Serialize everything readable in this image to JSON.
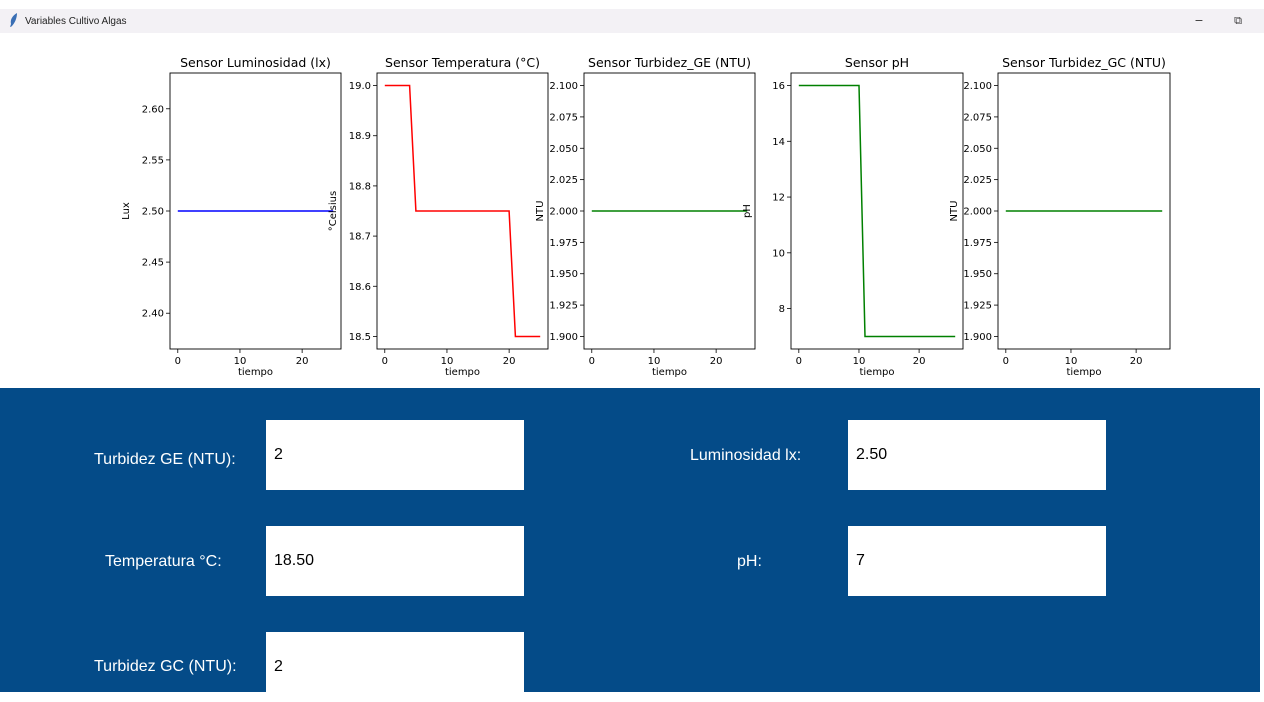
{
  "window": {
    "title": "Variables Cultivo Algas",
    "app_icon": "feather-icon",
    "minimize_glyph": "−",
    "restore_glyph": "⧉"
  },
  "chart_data": [
    {
      "type": "line",
      "title": "Sensor Luminosidad (lx)",
      "xlabel": "tiempo",
      "ylabel": "Lux",
      "x": [
        0,
        25
      ],
      "series": [
        {
          "values": [
            2.5,
            2.5
          ],
          "color": "#0000ff"
        }
      ],
      "xlim": [
        -1.25,
        26.25
      ],
      "ylim": [
        2.365,
        2.635
      ],
      "xticks": [
        0,
        10,
        20
      ],
      "xtick_labels": [
        "0",
        "10",
        "20"
      ],
      "yticks": [
        2.4,
        2.45,
        2.5,
        2.55,
        2.6
      ],
      "ytick_labels": [
        "2.40",
        "2.45",
        "2.50",
        "2.55",
        "2.60"
      ],
      "grid": false
    },
    {
      "type": "line",
      "title": "Sensor Temperatura (°C)",
      "xlabel": "tiempo",
      "ylabel": "°Celsius",
      "x": [
        0,
        4,
        5,
        20,
        21,
        25
      ],
      "series": [
        {
          "values": [
            19.0,
            19.0,
            18.75,
            18.75,
            18.5,
            18.5
          ],
          "color": "#ff0000"
        }
      ],
      "xlim": [
        -1.25,
        26.25
      ],
      "ylim": [
        18.475,
        19.025
      ],
      "xticks": [
        0,
        10,
        20
      ],
      "xtick_labels": [
        "0",
        "10",
        "20"
      ],
      "yticks": [
        18.5,
        18.6,
        18.7,
        18.8,
        18.9,
        19.0
      ],
      "ytick_labels": [
        "18.5",
        "18.6",
        "18.7",
        "18.8",
        "18.9",
        "19.0"
      ],
      "grid": false
    },
    {
      "type": "line",
      "title": "Sensor Turbidez_GE (NTU)",
      "xlabel": "tiempo",
      "ylabel": "NTU",
      "x": [
        0,
        25
      ],
      "series": [
        {
          "values": [
            2.0,
            2.0
          ],
          "color": "#008000"
        }
      ],
      "xlim": [
        -1.25,
        26.25
      ],
      "ylim": [
        1.89,
        2.11
      ],
      "xticks": [
        0,
        10,
        20
      ],
      "xtick_labels": [
        "0",
        "10",
        "20"
      ],
      "yticks": [
        1.9,
        1.925,
        1.95,
        1.975,
        2.0,
        2.025,
        2.05,
        2.075,
        2.1
      ],
      "ytick_labels": [
        "1.900",
        "1.925",
        "1.950",
        "1.975",
        "2.000",
        "2.025",
        "2.050",
        "2.075",
        "2.100"
      ],
      "grid": false
    },
    {
      "type": "line",
      "title": "Sensor pH",
      "xlabel": "tiempo",
      "ylabel": "pH",
      "x": [
        0,
        10,
        11,
        26
      ],
      "series": [
        {
          "values": [
            16,
            16,
            7,
            7
          ],
          "color": "#008000"
        }
      ],
      "xlim": [
        -1.3,
        27.3
      ],
      "ylim": [
        6.55,
        16.45
      ],
      "xticks": [
        0,
        10,
        20
      ],
      "xtick_labels": [
        "0",
        "10",
        "20"
      ],
      "yticks": [
        8,
        10,
        12,
        14,
        16
      ],
      "ytick_labels": [
        "8",
        "10",
        "12",
        "14",
        "16"
      ],
      "grid": false
    },
    {
      "type": "line",
      "title": "Sensor Turbidez_GC (NTU)",
      "xlabel": "tiempo",
      "ylabel": "NTU",
      "x": [
        0,
        24
      ],
      "series": [
        {
          "values": [
            2.0,
            2.0
          ],
          "color": "#008000"
        }
      ],
      "xlim": [
        -1.2,
        25.2
      ],
      "ylim": [
        1.89,
        2.11
      ],
      "xticks": [
        0,
        10,
        20
      ],
      "xtick_labels": [
        "0",
        "10",
        "20"
      ],
      "yticks": [
        1.9,
        1.925,
        1.95,
        1.975,
        2.0,
        2.025,
        2.05,
        2.075,
        2.1
      ],
      "ytick_labels": [
        "1.900",
        "1.925",
        "1.950",
        "1.975",
        "2.000",
        "2.025",
        "2.050",
        "2.075",
        "2.100"
      ],
      "grid": false
    }
  ],
  "form": {
    "turbidez_ge": {
      "label": "Turbidez GE (NTU):",
      "value": "2"
    },
    "temperatura": {
      "label": "Temperatura °C:",
      "value": "18.50"
    },
    "turbidez_gc": {
      "label": "Turbidez GC (NTU):",
      "value": "2"
    },
    "luminosidad": {
      "label": "Luminosidad lx:",
      "value": "2.50"
    },
    "ph": {
      "label": "pH:",
      "value": "7"
    }
  },
  "colors": {
    "panel": "#044b88",
    "titlebar": "#f3f1f5"
  }
}
